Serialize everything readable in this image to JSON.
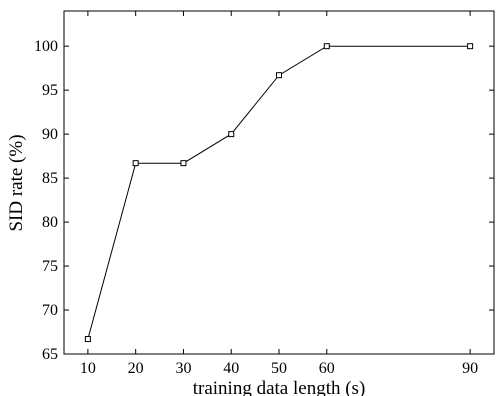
{
  "chart_data": {
    "type": "line",
    "title": "",
    "xlabel": "training data length (s)",
    "ylabel": "SID rate (%)",
    "x": [
      10,
      20,
      30,
      40,
      50,
      60,
      90
    ],
    "series": [
      {
        "values": [
          66.7,
          86.7,
          86.7,
          90.0,
          96.7,
          100.0,
          100.0
        ]
      }
    ],
    "xlim": [
      5,
      95
    ],
    "ylim": [
      65,
      104
    ],
    "xticks": [
      "10",
      "20",
      "30",
      "40",
      "50",
      "60",
      "90"
    ],
    "yticks": [
      "65",
      "70",
      "75",
      "80",
      "85",
      "90",
      "95",
      "100"
    ],
    "grid": false,
    "marker": "square",
    "line_color": "#000000"
  }
}
